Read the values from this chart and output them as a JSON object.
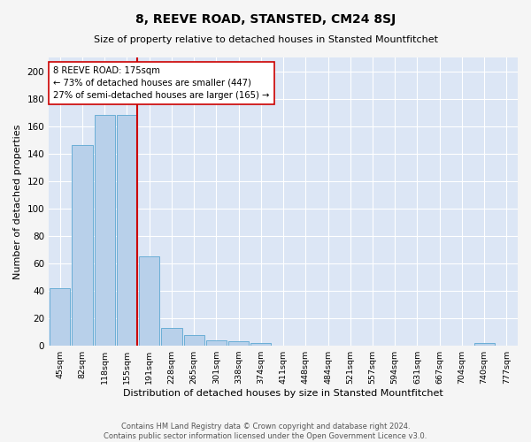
{
  "title": "8, REEVE ROAD, STANSTED, CM24 8SJ",
  "subtitle": "Size of property relative to detached houses in Stansted Mountfitchet",
  "xlabel": "Distribution of detached houses by size in Stansted Mountfitchet",
  "ylabel": "Number of detached properties",
  "categories": [
    "45sqm",
    "82sqm",
    "118sqm",
    "155sqm",
    "191sqm",
    "228sqm",
    "265sqm",
    "301sqm",
    "338sqm",
    "374sqm",
    "411sqm",
    "448sqm",
    "484sqm",
    "521sqm",
    "557sqm",
    "594sqm",
    "631sqm",
    "667sqm",
    "704sqm",
    "740sqm",
    "777sqm"
  ],
  "values": [
    42,
    146,
    168,
    168,
    65,
    13,
    8,
    4,
    3,
    2,
    0,
    0,
    0,
    0,
    0,
    0,
    0,
    0,
    0,
    2,
    0
  ],
  "bar_color": "#b8d0ea",
  "bar_edgecolor": "#6baed6",
  "vline_color": "#cc0000",
  "annotation_text": "8 REEVE ROAD: 175sqm\n← 73% of detached houses are smaller (447)\n27% of semi-detached houses are larger (165) →",
  "annotation_box_color": "#ffffff",
  "annotation_box_edgecolor": "#cc0000",
  "ylim": [
    0,
    210
  ],
  "yticks": [
    0,
    20,
    40,
    60,
    80,
    100,
    120,
    140,
    160,
    180,
    200
  ],
  "bg_color": "#dce6f5",
  "fig_color": "#f5f5f5",
  "footer_line1": "Contains HM Land Registry data © Crown copyright and database right 2024.",
  "footer_line2": "Contains public sector information licensed under the Open Government Licence v3.0."
}
